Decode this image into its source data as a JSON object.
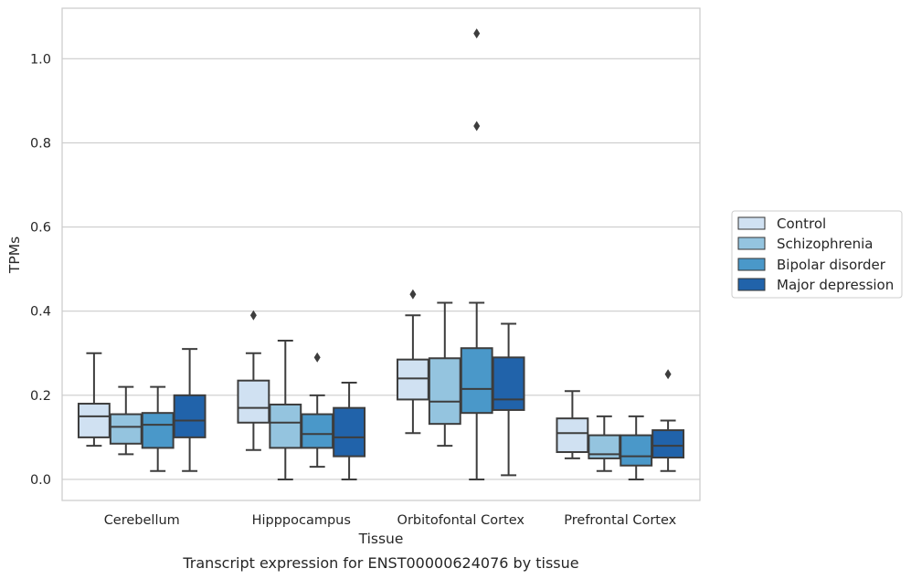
{
  "chart_data": {
    "type": "box",
    "caption": "Transcript expression for ENST00000624076 by tissue",
    "xlabel": "Tissue",
    "ylabel": "TPMs",
    "ylim": [
      -0.05,
      1.12
    ],
    "yticks": [
      0.0,
      0.2,
      0.4,
      0.6,
      0.8,
      1.0
    ],
    "grid": "horizontal",
    "legend_position": "right",
    "categories": [
      "Cerebellum",
      "Hipppocampus",
      "Orbitofontal Cortex",
      "Prefrontal Cortex"
    ],
    "series": [
      {
        "name": "Control",
        "color": "#d0e1f2",
        "boxes": [
          {
            "whislo": 0.08,
            "q1": 0.1,
            "med": 0.15,
            "q3": 0.18,
            "whishi": 0.3,
            "fliers": []
          },
          {
            "whislo": 0.07,
            "q1": 0.135,
            "med": 0.17,
            "q3": 0.235,
            "whishi": 0.3,
            "fliers": [
              0.39
            ]
          },
          {
            "whislo": 0.11,
            "q1": 0.19,
            "med": 0.24,
            "q3": 0.285,
            "whishi": 0.39,
            "fliers": [
              0.44
            ]
          },
          {
            "whislo": 0.05,
            "q1": 0.065,
            "med": 0.11,
            "q3": 0.145,
            "whishi": 0.21,
            "fliers": []
          }
        ]
      },
      {
        "name": "Schizophrenia",
        "color": "#94c4df",
        "boxes": [
          {
            "whislo": 0.06,
            "q1": 0.085,
            "med": 0.125,
            "q3": 0.155,
            "whishi": 0.22,
            "fliers": []
          },
          {
            "whislo": 0.0,
            "q1": 0.075,
            "med": 0.135,
            "q3": 0.178,
            "whishi": 0.33,
            "fliers": []
          },
          {
            "whislo": 0.08,
            "q1": 0.132,
            "med": 0.185,
            "q3": 0.288,
            "whishi": 0.42,
            "fliers": []
          },
          {
            "whislo": 0.02,
            "q1": 0.05,
            "med": 0.06,
            "q3": 0.105,
            "whishi": 0.15,
            "fliers": []
          }
        ]
      },
      {
        "name": "Bipolar disorder",
        "color": "#4a98c9",
        "boxes": [
          {
            "whislo": 0.02,
            "q1": 0.075,
            "med": 0.13,
            "q3": 0.158,
            "whishi": 0.22,
            "fliers": []
          },
          {
            "whislo": 0.03,
            "q1": 0.075,
            "med": 0.108,
            "q3": 0.155,
            "whishi": 0.2,
            "fliers": [
              0.29
            ]
          },
          {
            "whislo": 0.0,
            "q1": 0.158,
            "med": 0.215,
            "q3": 0.312,
            "whishi": 0.42,
            "fliers": [
              0.84,
              1.06
            ]
          },
          {
            "whislo": 0.0,
            "q1": 0.033,
            "med": 0.055,
            "q3": 0.105,
            "whishi": 0.15,
            "fliers": []
          }
        ]
      },
      {
        "name": "Major depression",
        "color": "#2163aa",
        "boxes": [
          {
            "whislo": 0.02,
            "q1": 0.1,
            "med": 0.14,
            "q3": 0.2,
            "whishi": 0.31,
            "fliers": []
          },
          {
            "whislo": 0.0,
            "q1": 0.055,
            "med": 0.1,
            "q3": 0.17,
            "whishi": 0.23,
            "fliers": []
          },
          {
            "whislo": 0.01,
            "q1": 0.165,
            "med": 0.19,
            "q3": 0.29,
            "whishi": 0.37,
            "fliers": []
          },
          {
            "whislo": 0.02,
            "q1": 0.052,
            "med": 0.08,
            "q3": 0.117,
            "whishi": 0.14,
            "fliers": [
              0.25
            ]
          }
        ]
      }
    ]
  }
}
